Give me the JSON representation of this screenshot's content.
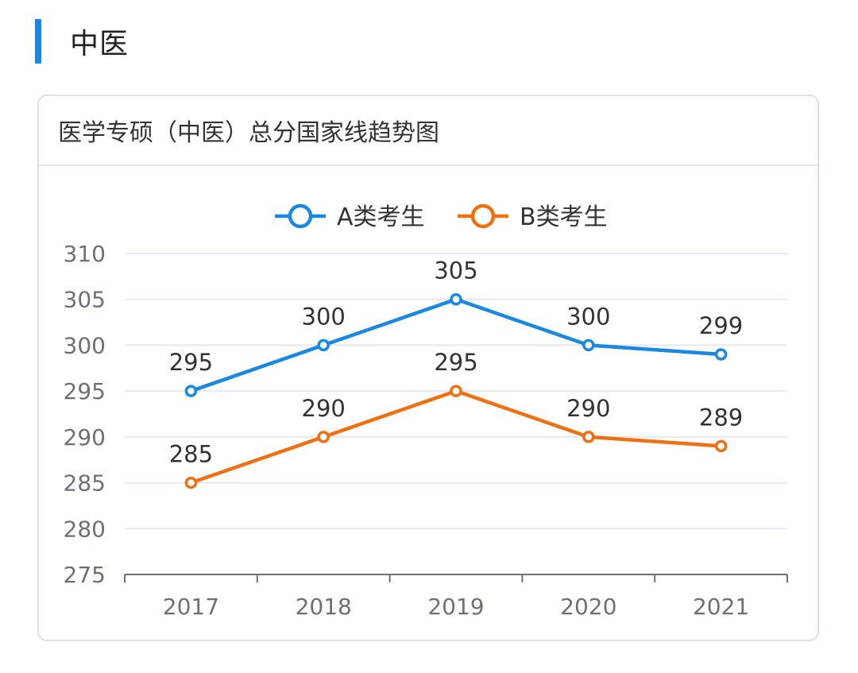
{
  "section": {
    "title": "中医"
  },
  "card": {
    "title": "医学专硕（中医）总分国家线趋势图"
  },
  "colors": {
    "accent": "#1a87e3",
    "series_a": "#1a87e3",
    "series_b": "#ef7013"
  },
  "chart_data": {
    "type": "line",
    "categories": [
      "2017",
      "2018",
      "2019",
      "2020",
      "2021"
    ],
    "series": [
      {
        "name": "A类考生",
        "values": [
          295,
          300,
          305,
          300,
          299
        ]
      },
      {
        "name": "B类考生",
        "values": [
          285,
          290,
          295,
          290,
          289
        ]
      }
    ],
    "ylim": [
      275,
      310
    ],
    "yticks": [
      "275",
      "280",
      "285",
      "290",
      "295",
      "300",
      "305",
      "310"
    ],
    "grid": true,
    "legend": "top-center",
    "data_labels": true
  }
}
